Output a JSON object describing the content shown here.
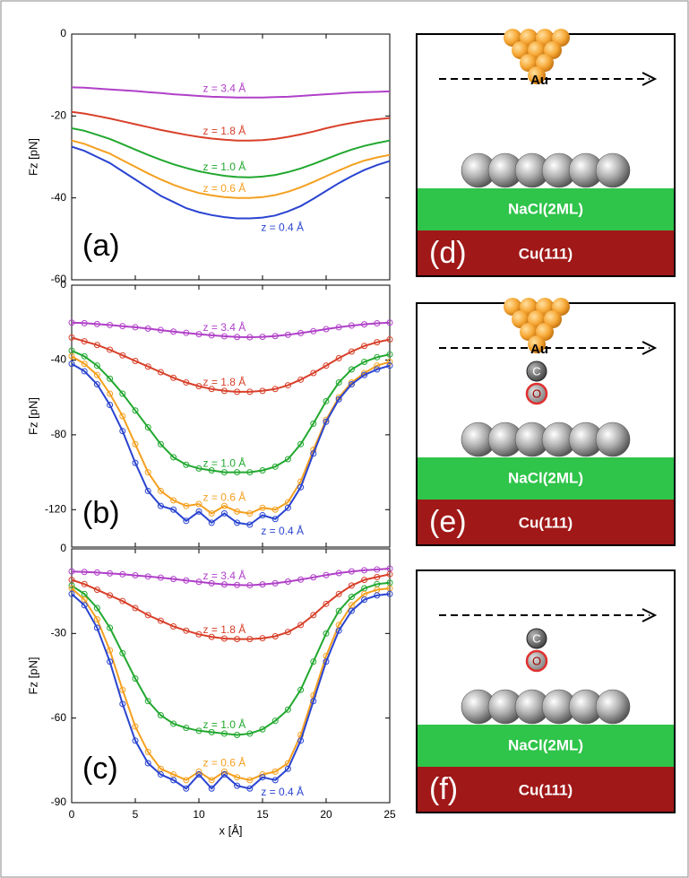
{
  "chart_data": [
    {
      "type": "line",
      "panel_label": "(a)",
      "ylabel": "Fz [pN]",
      "markers": false,
      "xlim": [
        0,
        25
      ],
      "xticks": [
        0,
        5,
        10,
        15,
        20,
        25
      ],
      "ylim": [
        -60,
        0
      ],
      "yticks": [
        -60,
        -40,
        -20,
        0
      ],
      "x": [
        0,
        1,
        2,
        3,
        4,
        5,
        6,
        7,
        8,
        9,
        10,
        11,
        12,
        13,
        14,
        15,
        16,
        17,
        18,
        19,
        20,
        21,
        22,
        23,
        24,
        25
      ],
      "series": [
        {
          "name": "z = 3.4 Å",
          "color": "#b040c8",
          "values": [
            -13,
            -13.1,
            -13.3,
            -13.5,
            -13.7,
            -13.9,
            -14.2,
            -14.4,
            -14.7,
            -14.9,
            -15.1,
            -15.3,
            -15.4,
            -15.5,
            -15.5,
            -15.5,
            -15.4,
            -15.3,
            -15.1,
            -14.9,
            -14.7,
            -14.5,
            -14.3,
            -14.2,
            -14.1,
            -14
          ]
        },
        {
          "name": "z = 1.8 Å",
          "color": "#d8402a",
          "values": [
            -19,
            -19.4,
            -20,
            -20.6,
            -21.3,
            -22,
            -22.7,
            -23.4,
            -24,
            -24.6,
            -25.1,
            -25.5,
            -25.8,
            -26,
            -26,
            -25.9,
            -25.6,
            -25.1,
            -24.5,
            -23.8,
            -23,
            -22.3,
            -21.7,
            -21.2,
            -20.8,
            -20.5
          ]
        },
        {
          "name": "z = 1.0 Å",
          "color": "#22a830",
          "values": [
            -23,
            -23.6,
            -24.6,
            -25.6,
            -26.9,
            -28.2,
            -29.5,
            -30.7,
            -31.8,
            -32.7,
            -33.5,
            -34.1,
            -34.6,
            -34.9,
            -35,
            -34.8,
            -34.4,
            -33.7,
            -32.8,
            -31.7,
            -30.5,
            -29.3,
            -28.2,
            -27.3,
            -26.6,
            -26
          ]
        },
        {
          "name": "z = 0.6 Å",
          "color": "#f4a020",
          "values": [
            -26,
            -26.8,
            -28,
            -29.2,
            -30.8,
            -32.4,
            -34,
            -35.5,
            -36.8,
            -37.9,
            -38.8,
            -39.4,
            -39.8,
            -40,
            -40,
            -39.8,
            -39.3,
            -38.5,
            -37.4,
            -36.1,
            -34.7,
            -33.3,
            -32,
            -30.9,
            -30.1,
            -29.5
          ]
        },
        {
          "name": "z = 0.4 Å",
          "color": "#2a44d0",
          "values": [
            -27.5,
            -28.5,
            -30,
            -31.5,
            -33.5,
            -35.5,
            -37.5,
            -39.5,
            -41,
            -42.5,
            -43.5,
            -44.2,
            -44.7,
            -45,
            -45,
            -44.8,
            -44.3,
            -43.3,
            -42,
            -40.2,
            -38.3,
            -36.4,
            -34.7,
            -33.2,
            -32,
            -31
          ]
        }
      ]
    },
    {
      "type": "line",
      "panel_label": "(b)",
      "ylabel": "Fz [pN]",
      "markers": true,
      "xlim": [
        0,
        25
      ],
      "xticks": [
        0,
        5,
        10,
        15,
        20,
        25
      ],
      "ylim": [
        -140,
        0
      ],
      "yticks": [
        -120,
        -80,
        -40,
        0
      ],
      "x": [
        0,
        1,
        2,
        3,
        4,
        5,
        6,
        7,
        8,
        9,
        10,
        11,
        12,
        13,
        14,
        15,
        16,
        17,
        18,
        19,
        20,
        21,
        22,
        23,
        24,
        25
      ],
      "series": [
        {
          "name": "z = 3.4 Å",
          "color": "#b040c8",
          "values": [
            -20,
            -20.3,
            -20.8,
            -21.3,
            -21.9,
            -22.5,
            -23.2,
            -24,
            -24.8,
            -25.5,
            -26.2,
            -26.8,
            -27.3,
            -27.7,
            -27.8,
            -27.6,
            -27.2,
            -26.5,
            -25.6,
            -24.6,
            -23.5,
            -22.5,
            -21.6,
            -20.9,
            -20.4,
            -20
          ]
        },
        {
          "name": "z = 1.8 Å",
          "color": "#d8402a",
          "values": [
            -28,
            -30,
            -32,
            -34.5,
            -37.5,
            -40.5,
            -43.5,
            -46.5,
            -49.5,
            -52,
            -54,
            -55.5,
            -56.5,
            -57,
            -57,
            -56.5,
            -55.5,
            -53.5,
            -50.5,
            -47,
            -43,
            -39,
            -35.5,
            -32.5,
            -30.5,
            -29
          ]
        },
        {
          "name": "z = 1.0 Å",
          "color": "#22a830",
          "values": [
            -35,
            -38,
            -43,
            -50,
            -58,
            -67,
            -76,
            -85,
            -92,
            -96,
            -98,
            -99,
            -100,
            -100,
            -100,
            -99,
            -97,
            -93,
            -85,
            -74,
            -62,
            -52,
            -45,
            -41,
            -38.5,
            -37
          ]
        },
        {
          "name": "z = 0.6 Å",
          "color": "#f4a020",
          "values": [
            -38,
            -42,
            -48,
            -58,
            -70,
            -85,
            -100,
            -110,
            -115,
            -118,
            -117,
            -122,
            -118,
            -121,
            -122,
            -119,
            -120,
            -116,
            -105,
            -88,
            -72,
            -60,
            -52,
            -47,
            -43,
            -41
          ]
        },
        {
          "name": "z = 0.4 Å",
          "color": "#2a44d0",
          "values": [
            -42,
            -46,
            -53,
            -64,
            -78,
            -95,
            -110,
            -118,
            -120,
            -126,
            -121,
            -127,
            -122,
            -127,
            -128,
            -123,
            -125,
            -119,
            -108,
            -90,
            -73,
            -61,
            -53,
            -48,
            -45,
            -43
          ]
        }
      ]
    },
    {
      "type": "line",
      "panel_label": "(c)",
      "ylabel": "Fz [pN]",
      "xlabel": "x [Å]",
      "markers": true,
      "xlim": [
        0,
        25
      ],
      "xticks": [
        0,
        5,
        10,
        15,
        20,
        25
      ],
      "ylim": [
        -90,
        0
      ],
      "yticks": [
        -90,
        -60,
        -30,
        0
      ],
      "x": [
        0,
        1,
        2,
        3,
        4,
        5,
        6,
        7,
        8,
        9,
        10,
        11,
        12,
        13,
        14,
        15,
        16,
        17,
        18,
        19,
        20,
        21,
        22,
        23,
        24,
        25
      ],
      "series": [
        {
          "name": "z = 3.4 Å",
          "color": "#b040c8",
          "values": [
            -8,
            -8.2,
            -8.4,
            -8.7,
            -9,
            -9.4,
            -9.8,
            -10.2,
            -10.7,
            -11.2,
            -11.7,
            -12.2,
            -12.6,
            -12.8,
            -12.9,
            -12.6,
            -12.2,
            -11.6,
            -10.9,
            -10.1,
            -9.3,
            -8.6,
            -8,
            -7.6,
            -7.3,
            -7
          ]
        },
        {
          "name": "z = 1.8 Å",
          "color": "#d8402a",
          "values": [
            -11,
            -12.5,
            -14.5,
            -16.5,
            -18.5,
            -21,
            -23.5,
            -25.5,
            -27.5,
            -29,
            -30.3,
            -31.2,
            -31.8,
            -32,
            -32,
            -31.7,
            -31,
            -29.5,
            -27,
            -23.5,
            -19.5,
            -16,
            -13,
            -11,
            -10,
            -9
          ]
        },
        {
          "name": "z = 1.0 Å",
          "color": "#22a830",
          "values": [
            -13,
            -16,
            -21,
            -28,
            -37,
            -46,
            -54,
            -59,
            -62,
            -63.5,
            -64.5,
            -65,
            -65.5,
            -66,
            -65.5,
            -64,
            -61,
            -57,
            -50,
            -40,
            -30,
            -22,
            -17,
            -14,
            -12.5,
            -12
          ]
        },
        {
          "name": "z = 0.6 Å",
          "color": "#f4a020",
          "values": [
            -14,
            -18,
            -25,
            -36,
            -50,
            -63,
            -72,
            -78,
            -80,
            -82,
            -79,
            -82,
            -79,
            -81,
            -82,
            -80,
            -79,
            -76,
            -66,
            -52,
            -38,
            -27,
            -20,
            -16,
            -14.5,
            -14
          ]
        },
        {
          "name": "z = 0.4 Å",
          "color": "#2a44d0",
          "values": [
            -16,
            -20,
            -28,
            -40,
            -55,
            -68,
            -76,
            -80,
            -82,
            -85,
            -80,
            -85,
            -80,
            -84,
            -85,
            -81,
            -82,
            -78,
            -68,
            -54,
            -40,
            -29,
            -22,
            -18,
            -16.5,
            -16
          ]
        }
      ]
    }
  ],
  "panels": [
    {
      "label": "(d)",
      "tip": "Au",
      "layers": [
        "NaCl(2ML)",
        "Cu(111)"
      ]
    },
    {
      "label": "(e)",
      "tip": "Au",
      "probe": [
        "C",
        "O"
      ],
      "layers": [
        "NaCl(2ML)",
        "Cu(111)"
      ]
    },
    {
      "label": "(f)",
      "probe": [
        "C",
        "O"
      ],
      "layers": [
        "NaCl(2ML)",
        "Cu(111)"
      ]
    }
  ]
}
